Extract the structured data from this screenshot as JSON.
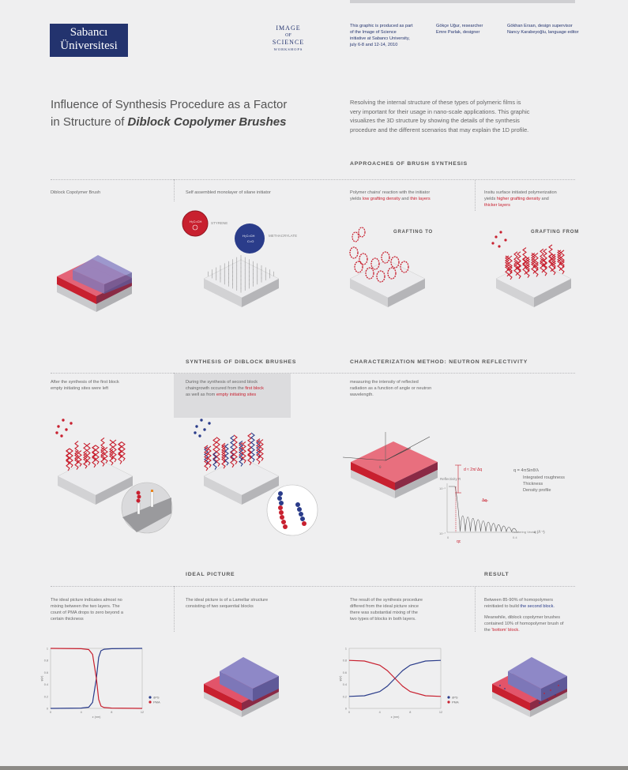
{
  "header": {
    "logo_line1": "Sabancı",
    "logo_line2": "Üniversitesi",
    "ios_line1": "IMAGE",
    "ios_line2": "OF",
    "ios_line3": "SCIENCE",
    "ios_line4": "WORKSHOPS",
    "about_lines": [
      "This graphic is produced as part",
      "of the Image of Science",
      "initiative at Sabancı University,",
      "july 6-8 and 12-14, 2010"
    ],
    "credits_a": [
      "Gökçe Uğur, researcher",
      "Emre Parlak, designer"
    ],
    "credits_b": [
      "Gökhan Ersan, design supervisor",
      "Nancy Karabeyoğlu, language editor"
    ]
  },
  "title": {
    "line1": "Influence of Synthesis Procedure as a Factor",
    "line2_prefix": "in Structure of ",
    "line2_emph": "Diblock Copolymer Brushes",
    "intro": [
      "Resolving the internal structure of these types of polymeric films is",
      "very important for their usage in nano-scale applications. This graphic",
      "visualizes the 3D structure by showing the details of the synthesis",
      "procedure and the different scenarios that may explain the 1D profile."
    ]
  },
  "approaches": {
    "heading": "APPROACHES OF BRUSH SYNTHESIS",
    "col1_label": "Diblock Copolymer Brush",
    "col2_label": "Self assembled monolayer of silane initiator",
    "styrene": "STYRENE",
    "methacrylate": "METHACRYLATE",
    "col3_pre": "Polymer chains' reaction with the initiator",
    "col3_yields": "yields ",
    "col3_em1": "low grafting density",
    "col3_and": " and ",
    "col3_em2": "thin layers",
    "col4_pre": "Insitu surface initiated polymerization",
    "col4_yields": "yields ",
    "col4_em1": "higher grafting density",
    "col4_and": " and",
    "col4_em2": "thicker layers",
    "grafting_to": "GRAFTING TO",
    "grafting_from": "GRAFTING FROM"
  },
  "synthesis": {
    "heading": "SYNTHESIS OF DIBLOCK BRUSHES",
    "left": [
      "After the synthesis of the first block",
      "empty initiating sites were left"
    ],
    "right_l1": "During the synthesis of second block",
    "right_l2_pre": "chaingrowth occured from the ",
    "right_l2_em": "first block",
    "right_l3_pre": "as well as from ",
    "right_l3_em": "empty initiating sites"
  },
  "characterization": {
    "heading": "CHARACTERIZATION METHOD: NEUTRON REFLECTIVITY",
    "desc": [
      "measuring the intensity of reflected",
      "radiation as a function of angle or neutron",
      "wavelength."
    ],
    "d_formula": "d ≈ 2π/ Δq",
    "q_formula": "q = 4πSinθ/λ",
    "notes": [
      "Integrated roughness",
      "Thickness",
      "Density profile"
    ],
    "reflectivity": "Reflectivity R",
    "scattering": "Scattering Vector",
    "q_unit": "q (Å⁻¹)",
    "delta_q": "Δq",
    "q_c": "qc",
    "tick_top": "10⁻¹",
    "tick_bottom": "10⁻⁷",
    "tick_zero": "0",
    "tick_end": "0.4",
    "theta": "θ"
  },
  "ideal": {
    "heading": "IDEAL PICTURE",
    "left": [
      "The ideal picture indicates almost no",
      "mixing between the two layers. The",
      "count of PMA drops to zero beyond a",
      "certain thickness"
    ],
    "right": [
      "The ideal picture is of a Lamellar structure",
      "consisting of two sequential blocks"
    ]
  },
  "result": {
    "heading": "RESULT",
    "left": [
      "The result of the synthesis procedure",
      "differed from the ideal picture since",
      "there was substantial mixing of the",
      "two types of blocks in both layers."
    ],
    "right_l1": "Between 85-90% of homopolymers",
    "right_l2_pre": "reinitiated to build ",
    "right_l2_em": "the second block.",
    "right_l3": "Meanwhile, diblock copolymer brushes",
    "right_l4": "contained 10% of homopolymer brush of",
    "right_l5_pre": "the ",
    "right_l5_em": "'bottom' block."
  },
  "chart_data": [
    {
      "type": "line",
      "xlabel": "z (nm)",
      "ylabel": "φ(z)",
      "xlim": [
        0,
        12
      ],
      "ylim": [
        0,
        1
      ],
      "x_ticks": [
        "0",
        "4",
        "8",
        "12"
      ],
      "y_ticks": [
        "0",
        "0.2",
        "0.4",
        "0.6",
        "0.8",
        "1"
      ],
      "series": [
        {
          "name": "dPS",
          "x": [
            0,
            4,
            5,
            5.5,
            6,
            6.3,
            6.6,
            7,
            8,
            12
          ],
          "values": [
            0.0,
            0.005,
            0.02,
            0.1,
            0.5,
            0.85,
            0.96,
            0.985,
            0.995,
            1.0
          ]
        },
        {
          "name": "PMA",
          "x": [
            0,
            4,
            5,
            5.5,
            6,
            6.3,
            6.6,
            7,
            8,
            12
          ],
          "values": [
            1.0,
            0.995,
            0.98,
            0.9,
            0.5,
            0.15,
            0.04,
            0.015,
            0.005,
            0.0
          ]
        }
      ],
      "legend": "bottom-right"
    },
    {
      "type": "line",
      "xlabel": "z (nm)",
      "ylabel": "φ(z)",
      "xlim": [
        0,
        12
      ],
      "ylim": [
        0,
        1
      ],
      "x_ticks": [
        "0",
        "4",
        "8",
        "12"
      ],
      "y_ticks": [
        "0",
        "0.2",
        "0.4",
        "0.6",
        "0.8",
        "1"
      ],
      "series": [
        {
          "name": "dPS",
          "x": [
            0,
            2,
            4,
            5,
            6,
            7,
            8,
            10,
            12
          ],
          "values": [
            0.2,
            0.21,
            0.28,
            0.37,
            0.5,
            0.63,
            0.72,
            0.79,
            0.8
          ]
        },
        {
          "name": "PMA",
          "x": [
            0,
            2,
            4,
            5,
            6,
            7,
            8,
            10,
            12
          ],
          "values": [
            0.8,
            0.79,
            0.72,
            0.63,
            0.5,
            0.37,
            0.28,
            0.21,
            0.2
          ]
        }
      ],
      "legend": "bottom-right"
    }
  ],
  "colors": {
    "red": "#c8202f",
    "blue": "#2a3c8a",
    "purple": "#8e88c7",
    "pink": "#e2546a",
    "base": "#d9d9db"
  }
}
